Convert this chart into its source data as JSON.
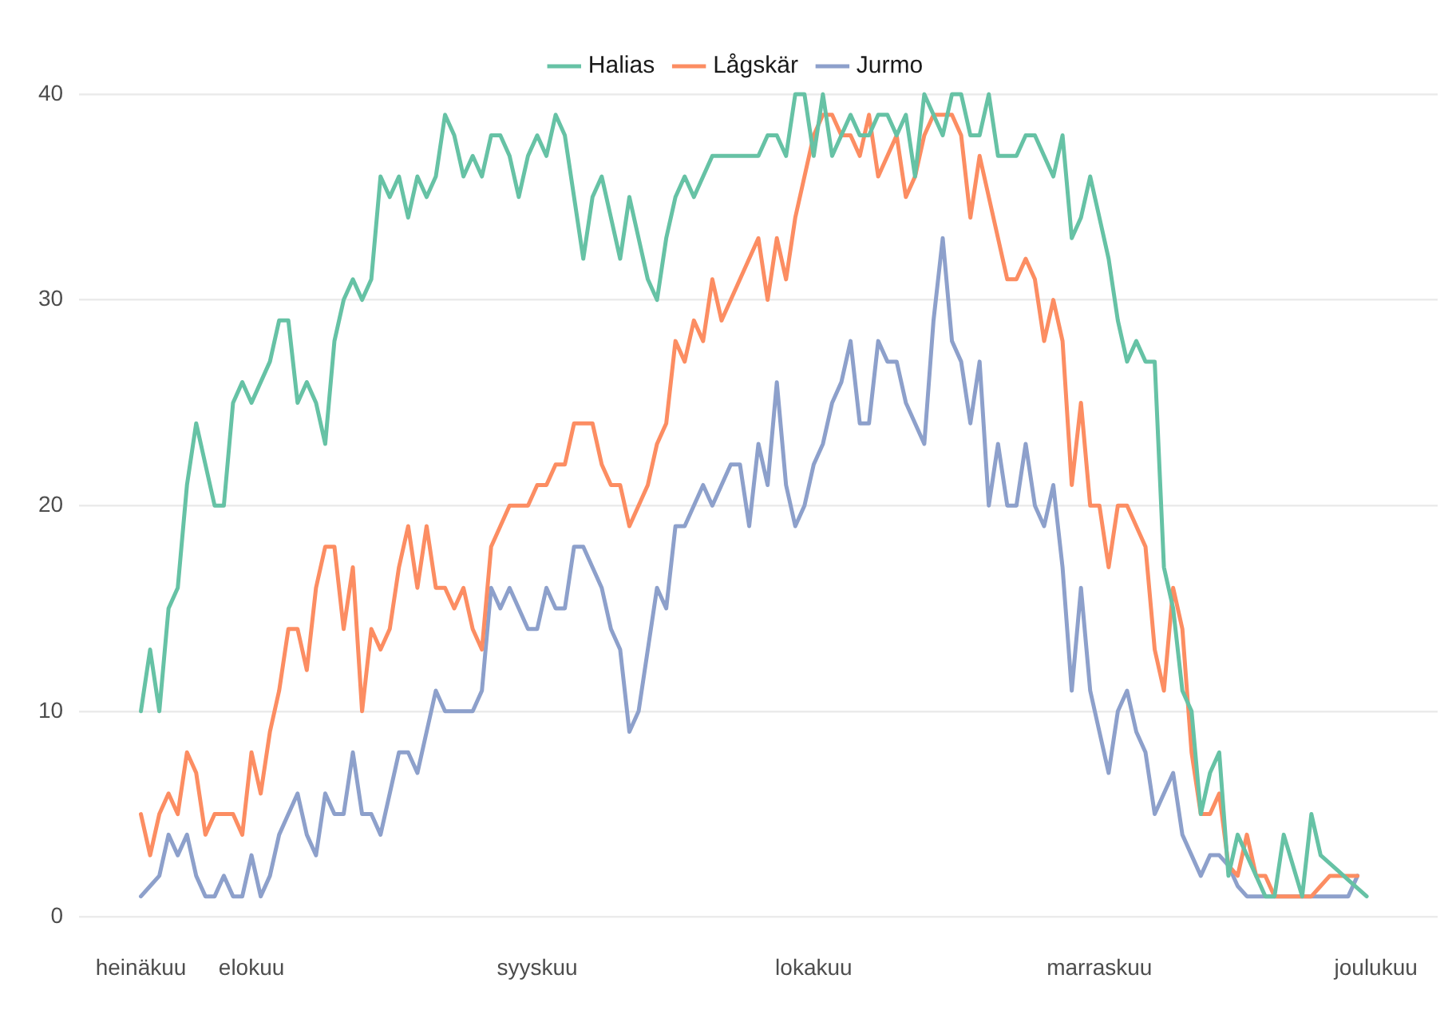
{
  "chart_data": {
    "type": "line",
    "legend": "top",
    "grid": "y",
    "ylim": [
      0,
      40
    ],
    "yticks": [
      0,
      10,
      20,
      30,
      40
    ],
    "categories": [
      "heinäkuu",
      null,
      null,
      null,
      null,
      null,
      null,
      null,
      null,
      null,
      null,
      null,
      "elokuu",
      null,
      null,
      null,
      null,
      null,
      null,
      null,
      null,
      null,
      null,
      null,
      null,
      null,
      null,
      null,
      null,
      null,
      null,
      null,
      null,
      null,
      null,
      null,
      null,
      null,
      null,
      null,
      null,
      null,
      null,
      "syyskuu",
      null,
      null,
      null,
      null,
      null,
      null,
      null,
      null,
      null,
      null,
      null,
      null,
      null,
      null,
      null,
      null,
      null,
      null,
      null,
      null,
      null,
      null,
      null,
      null,
      null,
      null,
      null,
      null,
      null,
      "lokakuu",
      null,
      null,
      null,
      null,
      null,
      null,
      null,
      null,
      null,
      null,
      null,
      null,
      null,
      null,
      null,
      null,
      null,
      null,
      null,
      null,
      null,
      null,
      null,
      null,
      null,
      null,
      null,
      null,
      null,
      null,
      "marraskuu",
      null,
      null,
      null,
      null,
      null,
      null,
      null,
      null,
      null,
      null,
      null,
      null,
      null,
      null,
      null,
      null,
      null,
      null,
      null,
      null,
      null,
      null,
      null,
      null,
      null,
      null,
      null,
      null,
      null,
      "joulukuu"
    ],
    "series": [
      {
        "name": "Halias",
        "color": "#66c2a5",
        "values": [
          10,
          13,
          10,
          15,
          16,
          21,
          24,
          22,
          20,
          20,
          25,
          26,
          25,
          26,
          27,
          29,
          29,
          25,
          26,
          25,
          23,
          28,
          30,
          31,
          30,
          31,
          36,
          35,
          36,
          34,
          36,
          35,
          36,
          39,
          38,
          36,
          37,
          36,
          38,
          38,
          37,
          35,
          37,
          38,
          37,
          39,
          38,
          35,
          32,
          35,
          36,
          34,
          32,
          35,
          33,
          31,
          30,
          33,
          35,
          36,
          35,
          36,
          37,
          37,
          37,
          37,
          37,
          37,
          38,
          38,
          37,
          40,
          40,
          37,
          40,
          37,
          38,
          39,
          38,
          38,
          39,
          39,
          38,
          39,
          36,
          40,
          39,
          38,
          40,
          40,
          38,
          38,
          40,
          37,
          37,
          37,
          38,
          38,
          37,
          36,
          38,
          33,
          34,
          36,
          34,
          32,
          29,
          27,
          28,
          27,
          27,
          17,
          15,
          11,
          10,
          5,
          7,
          8,
          2,
          4,
          3,
          2,
          1,
          1,
          4,
          2.5,
          1,
          5,
          3,
          2.6,
          2.2,
          1.8,
          1.4,
          1,
          null
        ]
      },
      {
        "name": "Lågskär",
        "color": "#fc8d62",
        "values": [
          5,
          3,
          5,
          6,
          5,
          8,
          7,
          4,
          5,
          5,
          5,
          4,
          8,
          6,
          9,
          11,
          14,
          14,
          12,
          16,
          18,
          18,
          14,
          17,
          10,
          14,
          13,
          14,
          17,
          19,
          16,
          19,
          16,
          16,
          15,
          16,
          14,
          13,
          18,
          19,
          20,
          20,
          20,
          21,
          21,
          22,
          22,
          24,
          24,
          24,
          22,
          21,
          21,
          19,
          20,
          21,
          23,
          24,
          28,
          27,
          29,
          28,
          31,
          29,
          30,
          31,
          32,
          33,
          30,
          33,
          31,
          34,
          36,
          38,
          39,
          39,
          38,
          38,
          37,
          39,
          36,
          37,
          38,
          35,
          36,
          38,
          39,
          39,
          39,
          38,
          34,
          37,
          35,
          33,
          31,
          31,
          32,
          31,
          28,
          30,
          28,
          21,
          25,
          20,
          20,
          17,
          20,
          20,
          19,
          18,
          13,
          11,
          16,
          14,
          8,
          5,
          5,
          6,
          2.5,
          2,
          4,
          2,
          2,
          1,
          1,
          1,
          1,
          1,
          1.5,
          2,
          2,
          2,
          2,
          null,
          null
        ]
      },
      {
        "name": "Jurmo",
        "color": "#8da0cb",
        "values": [
          1,
          1.5,
          2,
          4,
          3,
          4,
          2,
          1,
          1,
          2,
          1,
          1,
          3,
          1,
          2,
          4,
          5,
          6,
          4,
          3,
          6,
          5,
          5,
          8,
          5,
          5,
          4,
          6,
          8,
          8,
          7,
          9,
          11,
          10,
          10,
          10,
          10,
          11,
          16,
          15,
          16,
          15,
          14,
          14,
          16,
          15,
          15,
          18,
          18,
          17,
          16,
          14,
          13,
          9,
          10,
          13,
          16,
          15,
          19,
          19,
          20,
          21,
          20,
          21,
          22,
          22,
          19,
          23,
          21,
          26,
          21,
          19,
          20,
          22,
          23,
          25,
          26,
          28,
          24,
          24,
          28,
          27,
          27,
          25,
          24,
          23,
          29,
          33,
          28,
          27,
          24,
          27,
          20,
          23,
          20,
          20,
          23,
          20,
          19,
          21,
          17,
          11,
          16,
          11,
          9,
          7,
          10,
          11,
          9,
          8,
          5,
          6,
          7,
          4,
          3,
          2,
          3,
          3,
          2.5,
          1.5,
          1,
          1,
          1,
          1,
          1,
          1,
          1,
          1,
          1,
          1,
          1,
          1,
          2,
          null,
          null
        ]
      }
    ]
  }
}
